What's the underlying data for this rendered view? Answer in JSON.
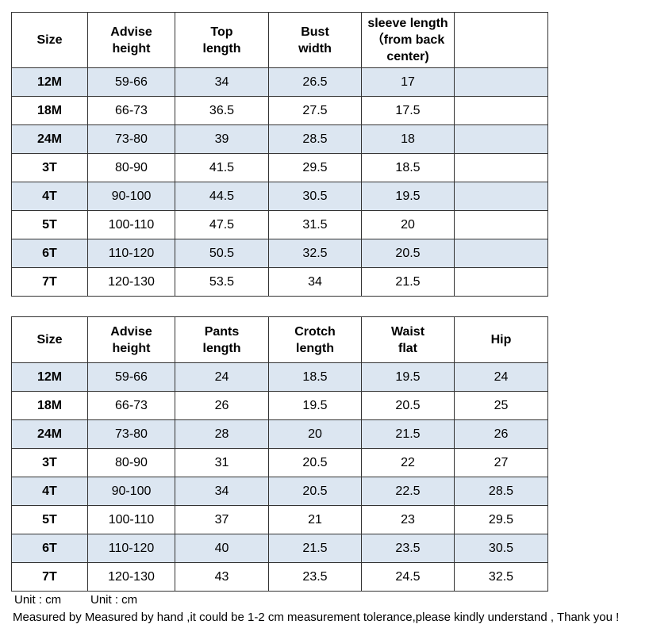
{
  "tables": [
    {
      "header": [
        [
          "Size"
        ],
        [
          "Advise",
          "height"
        ],
        [
          "Top",
          "length"
        ],
        [
          "Bust",
          "width"
        ],
        [
          "sleeve length",
          "（from back",
          "center)"
        ]
      ],
      "rows": [
        [
          "12M",
          "59-66",
          "34",
          "26.5",
          "17"
        ],
        [
          "18M",
          "66-73",
          "36.5",
          "27.5",
          "17.5"
        ],
        [
          "24M",
          "73-80",
          "39",
          "28.5",
          "18"
        ],
        [
          "3T",
          "80-90",
          "41.5",
          "29.5",
          "18.5"
        ],
        [
          "4T",
          "90-100",
          "44.5",
          "30.5",
          "19.5"
        ],
        [
          "5T",
          "100-110",
          "47.5",
          "31.5",
          "20"
        ],
        [
          "6T",
          "110-120",
          "50.5",
          "32.5",
          "20.5"
        ],
        [
          "7T",
          "120-130",
          "53.5",
          "34",
          "21.5"
        ]
      ]
    },
    {
      "header": [
        [
          "Size"
        ],
        [
          "Advise",
          "height"
        ],
        [
          "Pants",
          "length"
        ],
        [
          "Crotch",
          "length"
        ],
        [
          "Waist",
          "flat"
        ],
        [
          "Hip"
        ]
      ],
      "rows": [
        [
          "12M",
          "59-66",
          "24",
          "18.5",
          "19.5",
          "24"
        ],
        [
          "18M",
          "66-73",
          "26",
          "19.5",
          "20.5",
          "25"
        ],
        [
          "24M",
          "73-80",
          "28",
          "20",
          "21.5",
          "26"
        ],
        [
          "3T",
          "80-90",
          "31",
          "20.5",
          "22",
          "27"
        ],
        [
          "4T",
          "90-100",
          "34",
          "20.5",
          "22.5",
          "28.5"
        ],
        [
          "5T",
          "100-110",
          "37",
          "21",
          "23",
          "29.5"
        ],
        [
          "6T",
          "110-120",
          "40",
          "21.5",
          "23.5",
          "30.5"
        ],
        [
          "7T",
          "120-130",
          "43",
          "23.5",
          "24.5",
          "32.5"
        ]
      ]
    }
  ],
  "footer": {
    "units": [
      "Unit : cm",
      "Unit : cm"
    ],
    "note": "Measured by Measured by hand ,it could be 1-2 cm measurement tolerance,please kindly understand , Thank you !"
  }
}
